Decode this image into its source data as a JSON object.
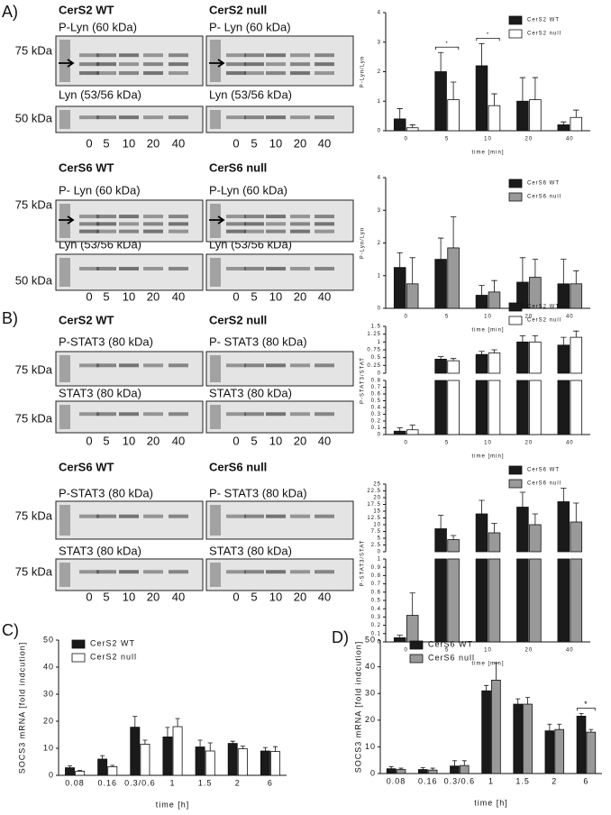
{
  "panels": [
    "A)",
    "B)",
    "C)",
    "D)"
  ],
  "lanes": [
    "0",
    "5",
    "10",
    "20",
    "40"
  ],
  "blots": [
    {
      "wt_title": "CerS2 WT",
      "null_title": "CerS2 null",
      "top_wt": "P-Lyn (60 kDa)",
      "top_null": "P- Lyn (60 kDa)",
      "bottom_wt": "Lyn (53/56 kDa)",
      "bottom_null": "Lyn (53/56 kDa)",
      "top_marker": "75 kDa",
      "bottom_marker": "50 kDa"
    },
    {
      "wt_title": "CerS6 WT",
      "null_title": "CerS6 null",
      "top_wt": "P- Lyn (60 kDa)",
      "top_null": "P-Lyn (60 kDa)",
      "bottom_wt": "Lyn (53/56 kDa)",
      "bottom_null": "Lyn (53/56 kDa)",
      "top_marker": "75 kDa",
      "bottom_marker": "50 kDa"
    },
    {
      "wt_title": "CerS2 WT",
      "null_title": "CerS2 null",
      "top_wt": "P-STAT3 (80 kDa)",
      "top_null": "P- STAT3 (80 kDa)",
      "bottom_wt": "STAT3 (80 kDa)",
      "bottom_null": "STAT3 (80 kDa)",
      "top_marker": "75 kDa",
      "bottom_marker": "75 kDa"
    },
    {
      "wt_title": "CerS6 WT",
      "null_title": "CerS6 null",
      "top_wt": "P-STAT3 (80 kDa)",
      "top_null": "P- STAT3 (80 kDa)",
      "bottom_wt": "STAT3 (80 kDa)",
      "bottom_null": "STAT3 (80 kDa)",
      "top_marker": "75 kDa",
      "bottom_marker": "75 kDa"
    }
  ],
  "chart_data": [
    {
      "type": "bar",
      "xlabel": "time [min]",
      "ylabel": "P-Lyn/Lyn",
      "categories": [
        "0",
        "5",
        "10",
        "20",
        "40"
      ],
      "ylim": [
        0,
        4
      ],
      "yticks": [
        0,
        1,
        2,
        3,
        4
      ],
      "series": [
        {
          "name": "CerS2 WT",
          "color": "#1a1a1a",
          "values": [
            0.4,
            2.0,
            2.2,
            1.0,
            0.2
          ],
          "errors": [
            0.35,
            0.65,
            0.75,
            0.8,
            0.1
          ]
        },
        {
          "name": "CerS2 null",
          "color": "#ffffff",
          "values": [
            0.1,
            1.05,
            0.85,
            1.05,
            0.45
          ],
          "errors": [
            0.1,
            0.6,
            0.4,
            0.75,
            0.25
          ]
        }
      ],
      "annotations": [
        {
          "text": "*",
          "category": "5"
        },
        {
          "text": "*",
          "category": "10"
        }
      ]
    },
    {
      "type": "bar",
      "xlabel": "time [min]",
      "ylabel": "P-Lyn/Lyn",
      "categories": [
        "0",
        "5",
        "10",
        "20",
        "40"
      ],
      "ylim": [
        0,
        4
      ],
      "yticks": [
        0,
        1,
        2,
        3,
        4
      ],
      "series": [
        {
          "name": "CerS6 WT",
          "color": "#1a1a1a",
          "values": [
            1.25,
            1.5,
            0.4,
            0.8,
            0.75
          ],
          "errors": [
            0.45,
            0.65,
            0.3,
            0.75,
            0.75
          ]
        },
        {
          "name": "CerS6 null",
          "color": "#999999",
          "values": [
            0.75,
            1.85,
            0.5,
            0.95,
            0.75
          ],
          "errors": [
            0.8,
            0.95,
            0.35,
            0.55,
            0.4
          ]
        }
      ]
    },
    {
      "type": "broken-bar",
      "xlabel": "time [min]",
      "ylabel": "P-STAT3/STAT",
      "categories": [
        "0",
        "5",
        "10",
        "20",
        "40"
      ],
      "category_axis": [
        "y",
        "y2",
        "y2",
        "y2",
        "y2"
      ],
      "ylim": [
        0,
        0.8
      ],
      "yticks": [
        0,
        0.1,
        0.2,
        0.3,
        0.4,
        0.5,
        0.6,
        0.7,
        0.8
      ],
      "y2lim": [
        0,
        1.5
      ],
      "y2ticks": [
        0,
        0.25,
        0.5,
        0.75,
        1,
        1.25,
        1.5
      ],
      "series": [
        {
          "name": "CerS2 WT",
          "color": "#1a1a1a",
          "values": [
            0.05,
            0.45,
            0.6,
            1.0,
            0.9
          ],
          "errors": [
            0.05,
            0.08,
            0.1,
            0.2,
            0.25
          ]
        },
        {
          "name": "CerS2 null",
          "color": "#ffffff",
          "values": [
            0.07,
            0.4,
            0.65,
            1.0,
            1.15
          ],
          "errors": [
            0.07,
            0.07,
            0.1,
            0.2,
            0.2
          ]
        }
      ]
    },
    {
      "type": "broken-bar",
      "xlabel": "time [min]",
      "ylabel": "P-STAT3/STAT",
      "categories": [
        "0",
        "5",
        "10",
        "20",
        "40"
      ],
      "category_axis": [
        "y",
        "y2",
        "y2",
        "y2",
        "y2"
      ],
      "ylim": [
        0,
        1
      ],
      "yticks": [
        0,
        0.1,
        0.2,
        0.3,
        0.4,
        0.5,
        0.6,
        0.7,
        0.8,
        0.9,
        1
      ],
      "y2lim": [
        0,
        25
      ],
      "y2ticks": [
        0,
        2.5,
        5,
        7.5,
        10,
        12.5,
        15,
        17.5,
        20,
        22.5,
        25
      ],
      "series": [
        {
          "name": "CerS6 WT",
          "color": "#1a1a1a",
          "values": [
            0.05,
            8.5,
            14,
            16.5,
            18.5
          ],
          "errors": [
            0.03,
            5,
            5,
            5.5,
            5
          ]
        },
        {
          "name": "CerS6 null",
          "color": "#999999",
          "values": [
            0.32,
            4.5,
            7,
            10,
            11
          ],
          "errors": [
            0.27,
            1.5,
            3.5,
            4,
            7
          ]
        }
      ]
    },
    {
      "type": "bar",
      "xlabel": "time [h]",
      "ylabel": "SOCS3 mRNA [fold indcution]",
      "categories": [
        "0.08",
        "0.16",
        "0.3/0.6",
        "1",
        "1.5",
        "2",
        "6"
      ],
      "ylim": [
        0,
        50
      ],
      "yticks": [
        0,
        10,
        20,
        30,
        40,
        50
      ],
      "series": [
        {
          "name": "CerS2 WT",
          "color": "#1a1a1a",
          "values": [
            2.8,
            6.0,
            17.8,
            14.2,
            10.5,
            11.8,
            9.0
          ],
          "errors": [
            0.7,
            1.3,
            4,
            3.5,
            2.5,
            0.8,
            1.3
          ]
        },
        {
          "name": "CerS2 null",
          "color": "#ffffff",
          "values": [
            1.5,
            3.2,
            11.5,
            18,
            9,
            9.8,
            8.8
          ],
          "errors": [
            0.3,
            0.5,
            1.5,
            3,
            3,
            1,
            1.8
          ]
        }
      ]
    },
    {
      "type": "bar",
      "xlabel": "time [h]",
      "ylabel": "SOCS3 mRNA [fold indcution]",
      "categories": [
        "0.08",
        "0.16",
        "0.3/0.6",
        "1",
        "1.5",
        "2",
        "6"
      ],
      "ylim": [
        0,
        50
      ],
      "yticks": [
        0,
        10,
        20,
        30,
        40,
        50
      ],
      "series": [
        {
          "name": "CerS6 WT",
          "color": "#1a1a1a",
          "values": [
            1.8,
            1.5,
            2.8,
            31,
            26,
            16,
            21.5
          ],
          "errors": [
            0.8,
            0.7,
            2,
            2,
            2,
            2.5,
            1
          ]
        },
        {
          "name": "CerS6 null",
          "color": "#999999",
          "values": [
            1.5,
            1.3,
            3,
            35,
            26,
            16.5,
            15.5
          ],
          "errors": [
            0.5,
            0.7,
            1.8,
            6.5,
            2.5,
            2,
            1
          ]
        }
      ],
      "annotations": [
        {
          "text": "*",
          "category": "6"
        }
      ]
    }
  ]
}
